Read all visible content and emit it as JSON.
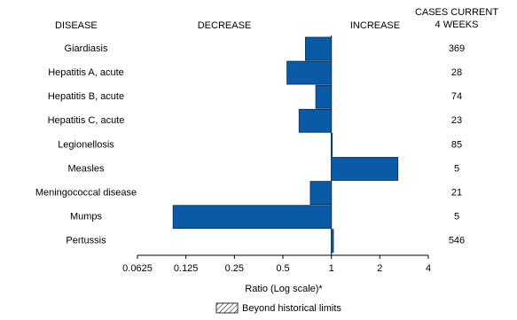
{
  "chart_data": {
    "type": "bar",
    "orientation": "horizontal",
    "xscale": "log",
    "category_header": "DISEASE",
    "decrease_label": "DECREASE",
    "increase_label": "INCREASE",
    "cases_header": [
      "CASES CURRENT",
      "4 WEEKS"
    ],
    "categories": [
      "Giardiasis",
      "Hepatitis A, acute",
      "Hepatitis B, acute",
      "Hepatitis C, acute",
      "Legionellosis",
      "Measles",
      "Meningococcal disease",
      "Mumps",
      "Pertussis"
    ],
    "values": [
      0.69,
      0.53,
      0.8,
      0.63,
      1.01,
      2.59,
      0.74,
      0.104,
      1.03
    ],
    "cases": [
      369,
      28,
      74,
      23,
      85,
      5,
      21,
      5,
      546
    ],
    "color": "#0b5aa6",
    "xlim": [
      0.0625,
      4
    ],
    "xticks": [
      0.0625,
      0.125,
      0.25,
      0.5,
      1,
      2,
      4
    ],
    "xlabel": "Ratio (Log scale)*",
    "legend_label": "Beyond historical limits"
  }
}
